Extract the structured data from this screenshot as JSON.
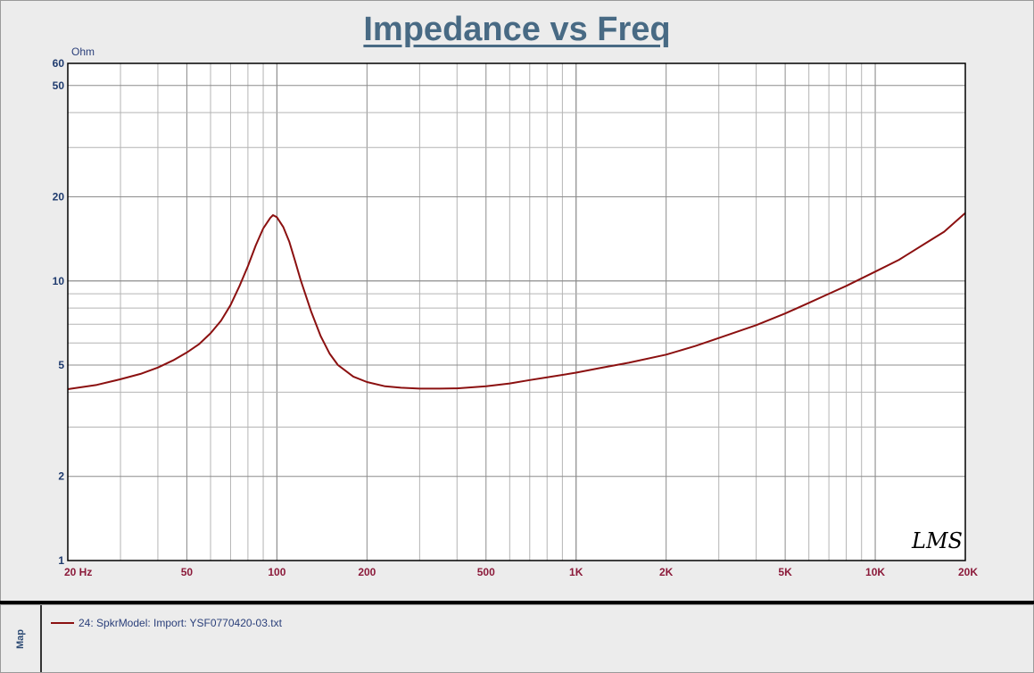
{
  "chart_data": {
    "type": "line",
    "title": "Impedance vs Freq",
    "ylabel": "Ohm",
    "xscale": "log",
    "yscale": "log",
    "xlim": [
      20,
      20000
    ],
    "ylim": [
      1,
      60
    ],
    "grid": true,
    "legend_position": "bottom panel",
    "x_ticks": [
      {
        "value": 20,
        "label": "20  Hz"
      },
      {
        "value": 50,
        "label": "50"
      },
      {
        "value": 100,
        "label": "100"
      },
      {
        "value": 200,
        "label": "200"
      },
      {
        "value": 500,
        "label": "500"
      },
      {
        "value": 1000,
        "label": "1K"
      },
      {
        "value": 2000,
        "label": "2K"
      },
      {
        "value": 5000,
        "label": "5K"
      },
      {
        "value": 10000,
        "label": "10K"
      },
      {
        "value": 20000,
        "label": "20K"
      }
    ],
    "y_ticks": [
      {
        "value": 1,
        "label": "1"
      },
      {
        "value": 2,
        "label": "2"
      },
      {
        "value": 5,
        "label": "5"
      },
      {
        "value": 10,
        "label": "10"
      },
      {
        "value": 20,
        "label": "20"
      },
      {
        "value": 50,
        "label": "50"
      },
      {
        "value": 60,
        "label": "60"
      }
    ],
    "series": [
      {
        "name": "24: SpkrModel: Import: YSF0770420-03.txt",
        "color": "#8b1010",
        "x": [
          20,
          25,
          30,
          35,
          40,
          45,
          50,
          55,
          60,
          65,
          70,
          75,
          80,
          85,
          90,
          95,
          97,
          100,
          105,
          110,
          115,
          120,
          130,
          140,
          150,
          160,
          180,
          200,
          230,
          260,
          300,
          350,
          400,
          500,
          600,
          700,
          800,
          1000,
          1200,
          1500,
          2000,
          2500,
          3000,
          4000,
          5000,
          6000,
          7000,
          8000,
          10000,
          12000,
          15000,
          17000,
          20000
        ],
        "y": [
          4.1,
          4.25,
          4.45,
          4.65,
          4.9,
          5.2,
          5.55,
          5.95,
          6.5,
          7.2,
          8.2,
          9.6,
          11.3,
          13.4,
          15.4,
          16.8,
          17.2,
          16.9,
          15.6,
          13.8,
          11.8,
          10.1,
          7.8,
          6.35,
          5.5,
          5.0,
          4.55,
          4.35,
          4.2,
          4.15,
          4.12,
          4.12,
          4.13,
          4.2,
          4.3,
          4.42,
          4.52,
          4.7,
          4.88,
          5.1,
          5.45,
          5.85,
          6.25,
          6.95,
          7.65,
          8.35,
          9.0,
          9.6,
          10.8,
          11.9,
          13.8,
          15.0,
          17.5
        ]
      }
    ],
    "annotations": [
      "LMS"
    ]
  },
  "legend": {
    "tab_label": "Map",
    "entries": [
      {
        "label": "24: SpkrModel: Import: YSF0770420-03.txt",
        "color": "#8b1010"
      }
    ]
  }
}
